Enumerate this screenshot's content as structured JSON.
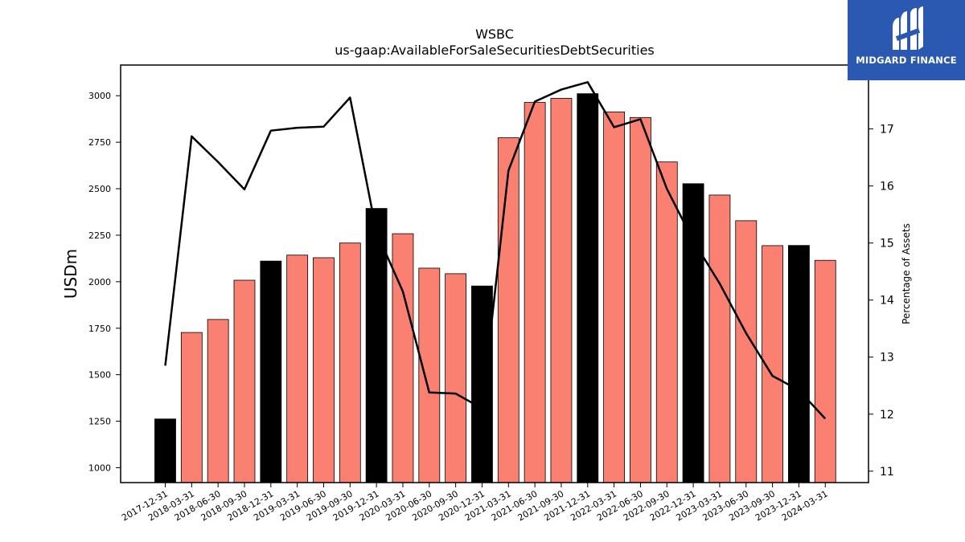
{
  "chart_data": {
    "type": "bar",
    "title": "WSBC",
    "subtitle": "us-gaap:AvailableForSaleSecuritiesDebtSecurities",
    "ylabel": "USDm",
    "y2label": "Percentage of Assets",
    "ylim": [
      920,
      3165
    ],
    "y2lim": [
      10.8,
      18.12
    ],
    "yticks": [
      1000,
      1250,
      1500,
      1750,
      2000,
      2250,
      2500,
      2750,
      3000
    ],
    "y2ticks": [
      11,
      12,
      13,
      14,
      15,
      16,
      17
    ],
    "categories": [
      "2017-12-31",
      "2018-03-31",
      "2018-06-30",
      "2018-09-30",
      "2018-12-31",
      "2019-03-31",
      "2019-06-30",
      "2019-09-30",
      "2019-12-31",
      "2020-03-31",
      "2020-06-30",
      "2020-09-30",
      "2020-12-31",
      "2021-03-31",
      "2021-06-30",
      "2021-09-30",
      "2021-12-31",
      "2022-03-31",
      "2022-06-30",
      "2022-09-30",
      "2022-12-31",
      "2023-03-31",
      "2023-06-30",
      "2023-09-30",
      "2023-12-31",
      "2024-03-31"
    ],
    "series": [
      {
        "kind": "bar",
        "values": [
          1262,
          1727,
          1797,
          2008,
          2111,
          2143,
          2129,
          2208,
          2394,
          2258,
          2073,
          2043,
          1977,
          2774,
          2964,
          2986,
          3011,
          2913,
          2883,
          2644,
          2527,
          2466,
          2328,
          2194,
          2195,
          2115
        ],
        "year_end": [
          true,
          false,
          false,
          false,
          true,
          false,
          false,
          false,
          true,
          false,
          false,
          false,
          true,
          false,
          false,
          false,
          true,
          false,
          false,
          false,
          true,
          false,
          false,
          false,
          true,
          false
        ],
        "color": "#fa8072",
        "year_end_color": "#000000"
      },
      {
        "kind": "line",
        "axis": "right",
        "values": [
          12.85,
          16.87,
          16.42,
          15.94,
          16.97,
          17.02,
          17.04,
          17.55,
          15.19,
          14.15,
          12.38,
          12.36,
          12.1,
          16.27,
          17.48,
          17.69,
          17.82,
          17.03,
          17.17,
          15.95,
          15.04,
          14.29,
          13.42,
          12.67,
          12.42,
          11.92
        ],
        "color": "#000000"
      }
    ],
    "grid": false
  },
  "logo": {
    "text": "MIDGARD FINANCE",
    "bg_color": "#2b58b0",
    "icon": "midgard-logo-icon"
  }
}
